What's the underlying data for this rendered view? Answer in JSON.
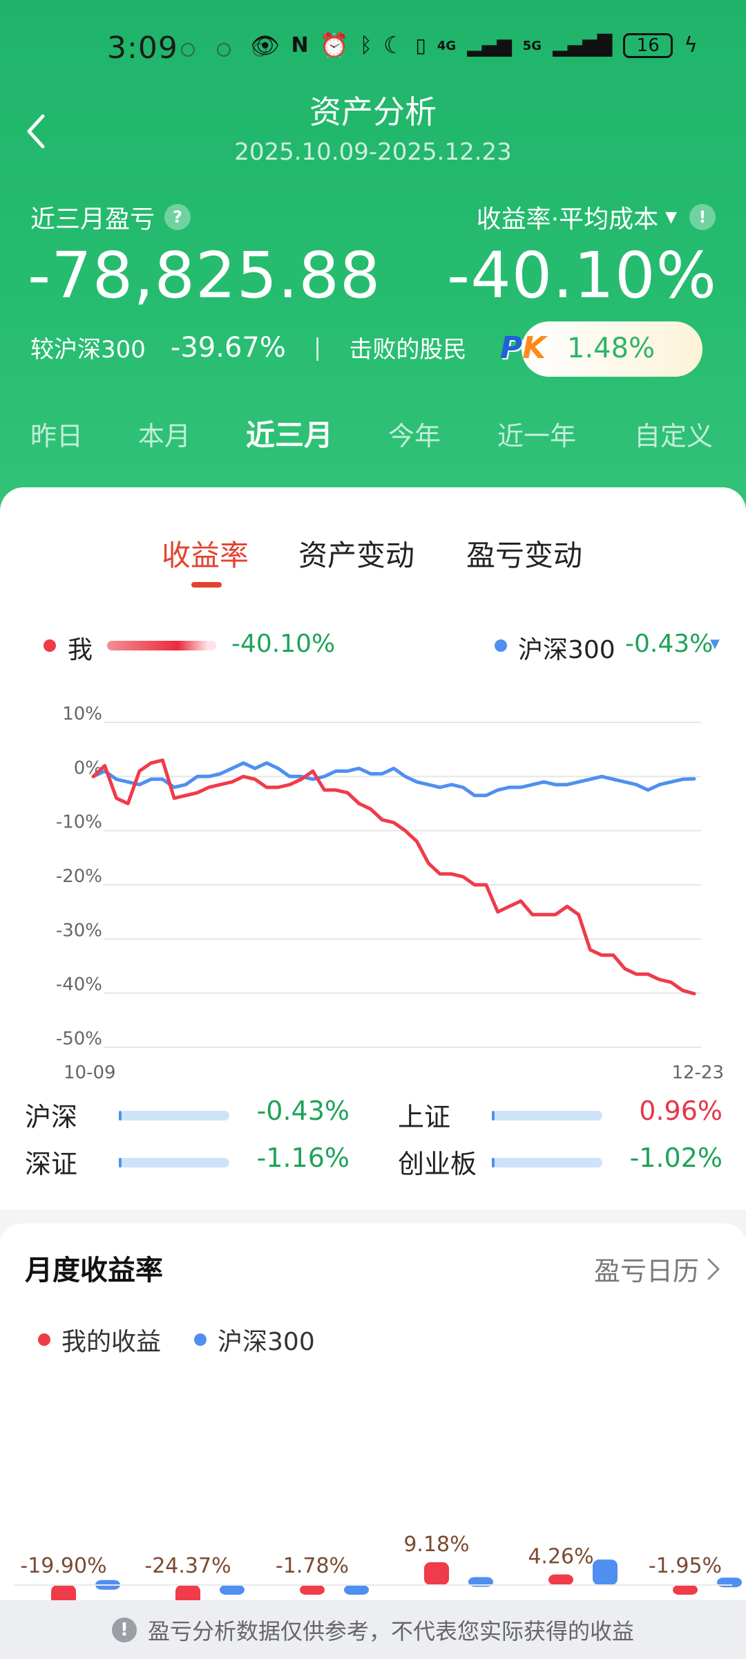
{
  "status_bar": {
    "time": "3:09",
    "net1": "4G",
    "net2": "5G",
    "battery": "16"
  },
  "header": {
    "title": "资产分析",
    "date_range": "2025.10.09-2025.12.23"
  },
  "summary": {
    "pl_label": "近三月盈亏",
    "pl_value": "-78,825.88",
    "return_label": "收益率·平均成本",
    "return_value": "-40.10%",
    "compare_label": "较沪深300",
    "compare_value": "-39.67%",
    "separator": "|",
    "beat_label": "击败的股民",
    "beat_value": "1.48%",
    "pk_text": [
      "P",
      "K"
    ]
  },
  "periods": [
    "昨日",
    "本月",
    "近三月",
    "今年",
    "近一年",
    "自定义"
  ],
  "active_period": 2,
  "subtabs": [
    "收益率",
    "资产变动",
    "盈亏变动"
  ],
  "active_subtab": 0,
  "legend": {
    "me_label": "我",
    "me_value": "-40.10%",
    "index_label": "沪深300",
    "index_value": "-0.43%",
    "colors": {
      "me": "#ef3b4a",
      "index": "#4f8ff0"
    }
  },
  "chart_data": [
    {
      "type": "line",
      "x_start": "10-09",
      "x_end": "12-23",
      "yticks": [
        "10%",
        "0%",
        "-10%",
        "-20%",
        "-30%",
        "-40%",
        "-50%"
      ],
      "ylim": [
        -50,
        10
      ],
      "grid": true,
      "series": [
        {
          "name": "我",
          "color": "#ef3b4a",
          "values": [
            0,
            2,
            -4,
            -5,
            1,
            2.5,
            3,
            -4,
            -3.5,
            -3,
            -2,
            -1.5,
            -1,
            0,
            -0.5,
            -2,
            -2,
            -1.5,
            -0.5,
            1,
            -2.5,
            -2.5,
            -3,
            -5,
            -6,
            -8,
            -8.5,
            -10,
            -12,
            -16,
            -18,
            -18,
            -18.5,
            -20,
            -20,
            -25,
            -24,
            -23,
            -25.5,
            -25.5,
            -25.5,
            -24,
            -25.5,
            -32,
            -33,
            -33,
            -35.5,
            -36.5,
            -36.5,
            -37.5,
            -38,
            -39.5,
            -40.1
          ]
        },
        {
          "name": "沪深300",
          "color": "#4f8ff0",
          "values": [
            0,
            1,
            -0.5,
            -1,
            -1.5,
            -0.5,
            -0.5,
            -2,
            -1.5,
            0,
            0,
            0.5,
            1.5,
            2.5,
            1.5,
            2.5,
            1.5,
            0,
            0,
            -0.5,
            0,
            1,
            1,
            1.5,
            0.5,
            0.5,
            1.5,
            0,
            -1,
            -1.5,
            -2,
            -1.5,
            -2,
            -3.5,
            -3.5,
            -2.5,
            -2,
            -2,
            -1.5,
            -1,
            -1.5,
            -1.5,
            -1,
            -0.5,
            0,
            -0.5,
            -1,
            -1.5,
            -2.5,
            -1.5,
            -1,
            -0.5,
            -0.43
          ]
        }
      ]
    },
    {
      "type": "bar",
      "title": "月度收益率",
      "series": [
        {
          "name": "我的收益",
          "color": "#ef3b4a",
          "values": [
            -19.9,
            -24.37,
            -1.78,
            9.18,
            4.26,
            -1.95
          ]
        },
        {
          "name": "沪深300",
          "color": "#4f8ff0",
          "values": [
            2.02,
            -2.76,
            0,
            3.2,
            10.23,
            3.0
          ]
        }
      ],
      "labels_me": [
        "-19.90%",
        "-24.37%",
        "-1.78%",
        "9.18%",
        "4.26%",
        "-1.95%"
      ]
    }
  ],
  "indices": [
    {
      "name": "沪深",
      "value": "-0.43%",
      "sign": "neg"
    },
    {
      "name": "上证",
      "value": "0.96%",
      "sign": "pos"
    },
    {
      "name": "深证",
      "value": "-1.16%",
      "sign": "neg"
    },
    {
      "name": "创业板",
      "value": "-1.02%",
      "sign": "neg"
    }
  ],
  "monthly": {
    "title": "月度收益率",
    "link": "盈亏日历",
    "legend_me": "我的收益",
    "legend_index": "沪深300"
  },
  "footer": {
    "notice": "盈亏分析数据仅供参考，不代表您实际获得的收益"
  }
}
